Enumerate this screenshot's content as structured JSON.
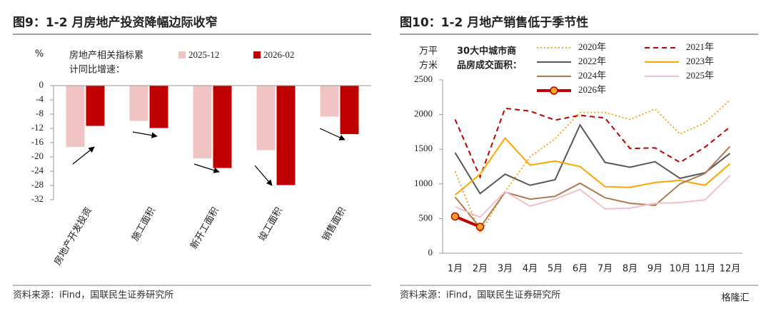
{
  "chart_data": [
    {
      "type": "bar",
      "title": "图9：1-2 月房地产投资降幅边际收窄",
      "y_label": "%",
      "annotation": [
        "房地产相关指标累",
        "计同比增速："
      ],
      "categories": [
        "房地产开发投资",
        "施工面积",
        "新开工面积",
        "竣工面积",
        "销售面积"
      ],
      "series": [
        {
          "name": "2025-12",
          "color": "#f0c4c4",
          "values": [
            -17.2,
            -9.9,
            -20.4,
            -18.1,
            -8.7
          ]
        },
        {
          "name": "2026-02",
          "color": "#c00000",
          "values": [
            -11.3,
            -11.9,
            -23.1,
            -27.9,
            -13.6
          ]
        }
      ],
      "ylim": [
        -32,
        0
      ],
      "yticks": [
        0,
        -4,
        -8,
        -12,
        -16,
        -20,
        -24,
        -28,
        -32
      ],
      "source": "资料来源：iFind，国联民生证券研究所"
    },
    {
      "type": "line",
      "title": "图10：1-2 月地产销售低于季节性",
      "y_label": [
        "万平",
        "方米"
      ],
      "annotation": [
        "30大中城市商",
        "品房成交面积："
      ],
      "categories": [
        "1月",
        "2月",
        "3月",
        "4月",
        "5月",
        "6月",
        "7月",
        "8月",
        "9月",
        "10月",
        "11月",
        "12月"
      ],
      "series": [
        {
          "name": "2020年",
          "color": "#f5a623",
          "dash": "dotted",
          "values": [
            1180,
            290,
            890,
            1390,
            1650,
            2030,
            2030,
            1930,
            2080,
            1720,
            1880,
            2210
          ]
        },
        {
          "name": "2021年",
          "color": "#c00000",
          "dash": "dashed",
          "values": [
            1930,
            1100,
            2090,
            2050,
            1920,
            1990,
            1950,
            1510,
            1520,
            1310,
            1530,
            1820
          ]
        },
        {
          "name": "2022年",
          "color": "#595959",
          "values": [
            1450,
            860,
            1140,
            980,
            1060,
            1850,
            1310,
            1240,
            1320,
            1080,
            1160,
            1440
          ]
        },
        {
          "name": "2023年",
          "color": "#ffa500",
          "values": [
            840,
            1140,
            1660,
            1270,
            1330,
            1250,
            960,
            950,
            1020,
            1050,
            980,
            1290
          ]
        },
        {
          "name": "2024年",
          "color": "#b07a50",
          "values": [
            810,
            370,
            880,
            780,
            820,
            1010,
            800,
            720,
            690,
            1000,
            1150,
            1540
          ]
        },
        {
          "name": "2025年",
          "color": "#f0c0c8",
          "values": [
            670,
            520,
            890,
            680,
            780,
            920,
            640,
            650,
            720,
            730,
            770,
            1120
          ]
        },
        {
          "name": "2026年",
          "color": "#c00000",
          "marker": "#f5a623",
          "values": [
            530,
            380,
            null,
            null,
            null,
            null,
            null,
            null,
            null,
            null,
            null,
            null
          ]
        }
      ],
      "ylim": [
        0,
        2500
      ],
      "yticks": [
        0,
        500,
        1000,
        1500,
        2000,
        2500
      ],
      "source": "资料来源：iFind，国联民生证券研究所"
    }
  ],
  "watermark": "格隆汇"
}
